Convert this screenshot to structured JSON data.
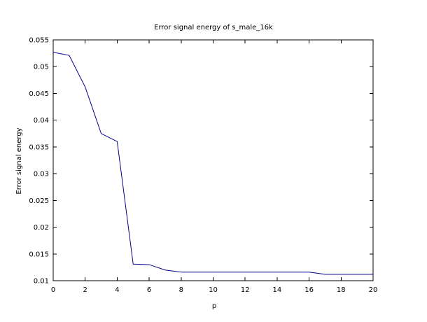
{
  "chart_data": {
    "type": "line",
    "title": "Error signal energy of s_male_16k",
    "xlabel": "p",
    "ylabel": "Error signal energy",
    "xlim": [
      0,
      20
    ],
    "ylim": [
      0.01,
      0.055
    ],
    "xticks": [
      0,
      2,
      4,
      6,
      8,
      10,
      12,
      14,
      16,
      18,
      20
    ],
    "yticks": [
      0.01,
      0.015,
      0.02,
      0.025,
      0.03,
      0.035,
      0.04,
      0.045,
      0.05,
      0.055
    ],
    "ytick_labels": [
      "0.01",
      "0.015",
      "0.02",
      "0.025",
      "0.03",
      "0.035",
      "0.04",
      "0.045",
      "0.05",
      "0.055"
    ],
    "grid": false,
    "line_color": "#00008b",
    "series": [
      {
        "x": [
          0,
          1,
          2,
          3,
          4,
          5,
          6,
          7,
          8,
          9,
          10,
          11,
          12,
          13,
          14,
          15,
          16,
          17,
          18,
          19,
          20
        ],
        "y": [
          0.0527,
          0.0521,
          0.0462,
          0.0375,
          0.036,
          0.0131,
          0.013,
          0.012,
          0.0116,
          0.0116,
          0.0116,
          0.0116,
          0.0116,
          0.0116,
          0.0116,
          0.0116,
          0.0116,
          0.0112,
          0.0112,
          0.0112,
          0.0112
        ]
      }
    ]
  }
}
